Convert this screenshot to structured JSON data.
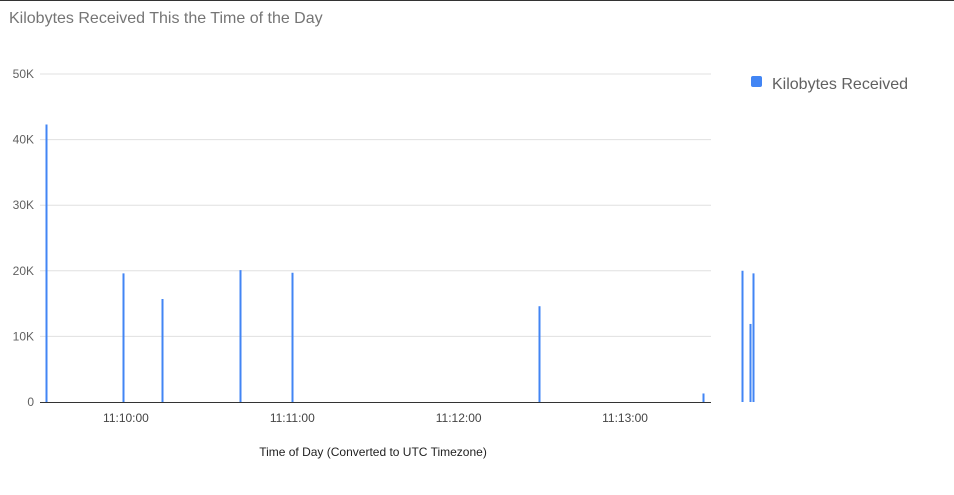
{
  "chart_data": {
    "type": "bar",
    "title": "Kilobytes Received This the Time of the Day",
    "xlabel": "Time of Day (Converted to UTC Timezone)",
    "ylabel": "",
    "ylim": [
      0,
      50000
    ],
    "y_ticks": [
      0,
      10000,
      20000,
      30000,
      40000,
      50000
    ],
    "y_tick_labels": [
      "0",
      "10K",
      "20K",
      "30K",
      "40K",
      "50K"
    ],
    "x_range_seconds": [
      569,
      811
    ],
    "x_ticks": [
      600,
      660,
      720,
      780
    ],
    "x_tick_labels": [
      "11:10:00",
      "11:11:00",
      "11:12:00",
      "11:13:00"
    ],
    "grid": true,
    "legend_position": "right",
    "series": [
      {
        "name": "Kilobytes Received",
        "color": "#4285f4",
        "points": [
          {
            "x": "11:09:31",
            "y": 42300
          },
          {
            "x": "11:09:59",
            "y": 19600
          },
          {
            "x": "11:10:13",
            "y": 15700
          },
          {
            "x": "11:10:41",
            "y": 20100
          },
          {
            "x": "11:11:00",
            "y": 19700
          },
          {
            "x": "11:12:29",
            "y": 14600
          },
          {
            "x": "11:13:28",
            "y": 1300
          },
          {
            "x": "11:13:42",
            "y": 20000
          },
          {
            "x": "11:13:45",
            "y": 11900
          },
          {
            "x": "11:13:46",
            "y": 19600
          }
        ]
      }
    ]
  }
}
